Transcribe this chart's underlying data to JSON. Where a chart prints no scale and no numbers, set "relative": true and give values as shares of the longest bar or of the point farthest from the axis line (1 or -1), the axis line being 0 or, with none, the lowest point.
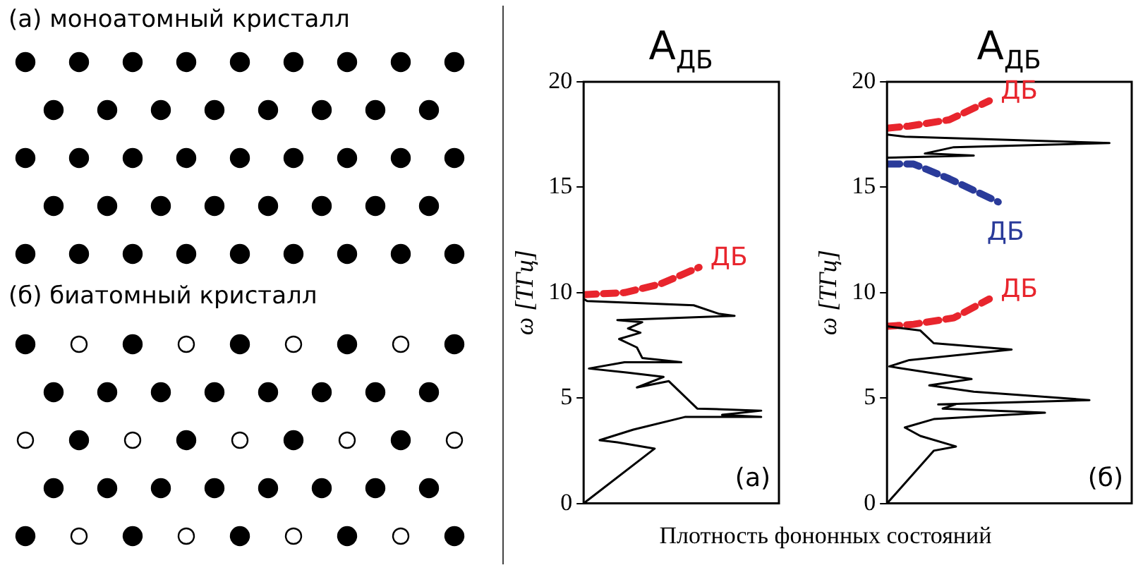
{
  "chart_data": [
    {
      "type": "other",
      "annotations": [
        "(а) моноатомный кристалл",
        "(б) биатомный кристалл"
      ]
    },
    {
      "type": "line",
      "orientation": "horizontal",
      "relative": true,
      "title": "A$_{ДБ}$",
      "xlabel": "Плотность фононных состояний",
      "ylabel": "ω [ТГц]",
      "ylim": [
        0,
        20
      ],
      "yticks": [
        0,
        5,
        10,
        15,
        20
      ],
      "tick_labels": "y",
      "grid": false,
      "legend": false,
      "marker": "none",
      "annotations": [
        "(а)"
      ],
      "series": [
        {
          "color": "#000000",
          "line_style": "solid",
          "values": [
            0,
            0.4,
            0.19,
            0.09,
            0.28,
            0.57,
            1,
            0.78,
            1,
            0.64,
            0.48,
            0.3,
            0.45,
            0.25,
            0.03,
            0.23,
            0.55,
            0.33,
            0.3,
            0.2,
            0.32,
            0.25,
            0.33,
            0.19,
            0.85,
            0.76,
            0.62,
            0.02,
            0
          ],
          "x": [
            0,
            2.6,
            2.9,
            3.0,
            3.5,
            4.1,
            4.1,
            4.2,
            4.4,
            4.5,
            5.8,
            5.5,
            6.0,
            6.2,
            6.4,
            6.7,
            6.7,
            6.9,
            7.4,
            7.8,
            8.1,
            8.3,
            8.6,
            8.7,
            8.9,
            9.0,
            9.4,
            9.6,
            9.7
          ]
        },
        {
          "name": "ДБ",
          "color": "#e8252d",
          "line_style": "dashed",
          "values": [
            0,
            0.23,
            0.43,
            0.65
          ],
          "x": [
            9.9,
            10.0,
            10.4,
            11.2
          ]
        }
      ]
    },
    {
      "type": "line",
      "orientation": "horizontal",
      "relative": true,
      "title": "A$_{ДБ}$",
      "ylabel": "ω [ТГц]",
      "ylim": [
        0,
        20
      ],
      "yticks": [
        0,
        5,
        10,
        15,
        20
      ],
      "tick_labels": "y",
      "grid": false,
      "legend": false,
      "marker": "none",
      "annotations": [
        "(б)"
      ],
      "series": [
        {
          "color": "#000000",
          "line_style": "solid",
          "values": [
            0,
            0.21,
            0.31,
            0.15,
            0.08,
            0.21,
            0.71,
            0.25,
            0.31,
            0.23,
            0.91,
            0.39,
            0.19,
            0.38,
            0.19,
            0.01,
            0.1,
            0.56,
            0.21,
            0.15,
            0,
            null,
            0,
            0.39,
            0.17,
            0.3,
            1,
            0.08,
            0
          ],
          "x": [
            0,
            2.5,
            2.7,
            3.2,
            3.6,
            4.0,
            4.3,
            4.5,
            4.7,
            4.7,
            4.9,
            5.3,
            5.6,
            5.9,
            6.2,
            6.5,
            6.8,
            7.3,
            7.6,
            8.2,
            8.4,
            12,
            16.4,
            16.5,
            16.6,
            16.9,
            17.1,
            17.4,
            17.5
          ]
        },
        {
          "name": "ДБ",
          "color": "#e8252d",
          "line_style": "dashed",
          "values": [
            0,
            0.1,
            0.28,
            0.46
          ],
          "x": [
            17.8,
            17.9,
            18.2,
            19.1
          ]
        },
        {
          "name": "ДБ",
          "color": "#2a3b9a",
          "line_style": "dashed",
          "values": [
            0,
            0.12,
            0.28,
            0.5
          ],
          "x": [
            16.1,
            16.1,
            15.4,
            14.3
          ]
        },
        {
          "name": "ДБ",
          "color": "#e8252d",
          "line_style": "dashed",
          "values": [
            0,
            0.12,
            0.3,
            0.46
          ],
          "x": [
            8.4,
            8.5,
            8.8,
            9.7
          ]
        }
      ]
    }
  ]
}
